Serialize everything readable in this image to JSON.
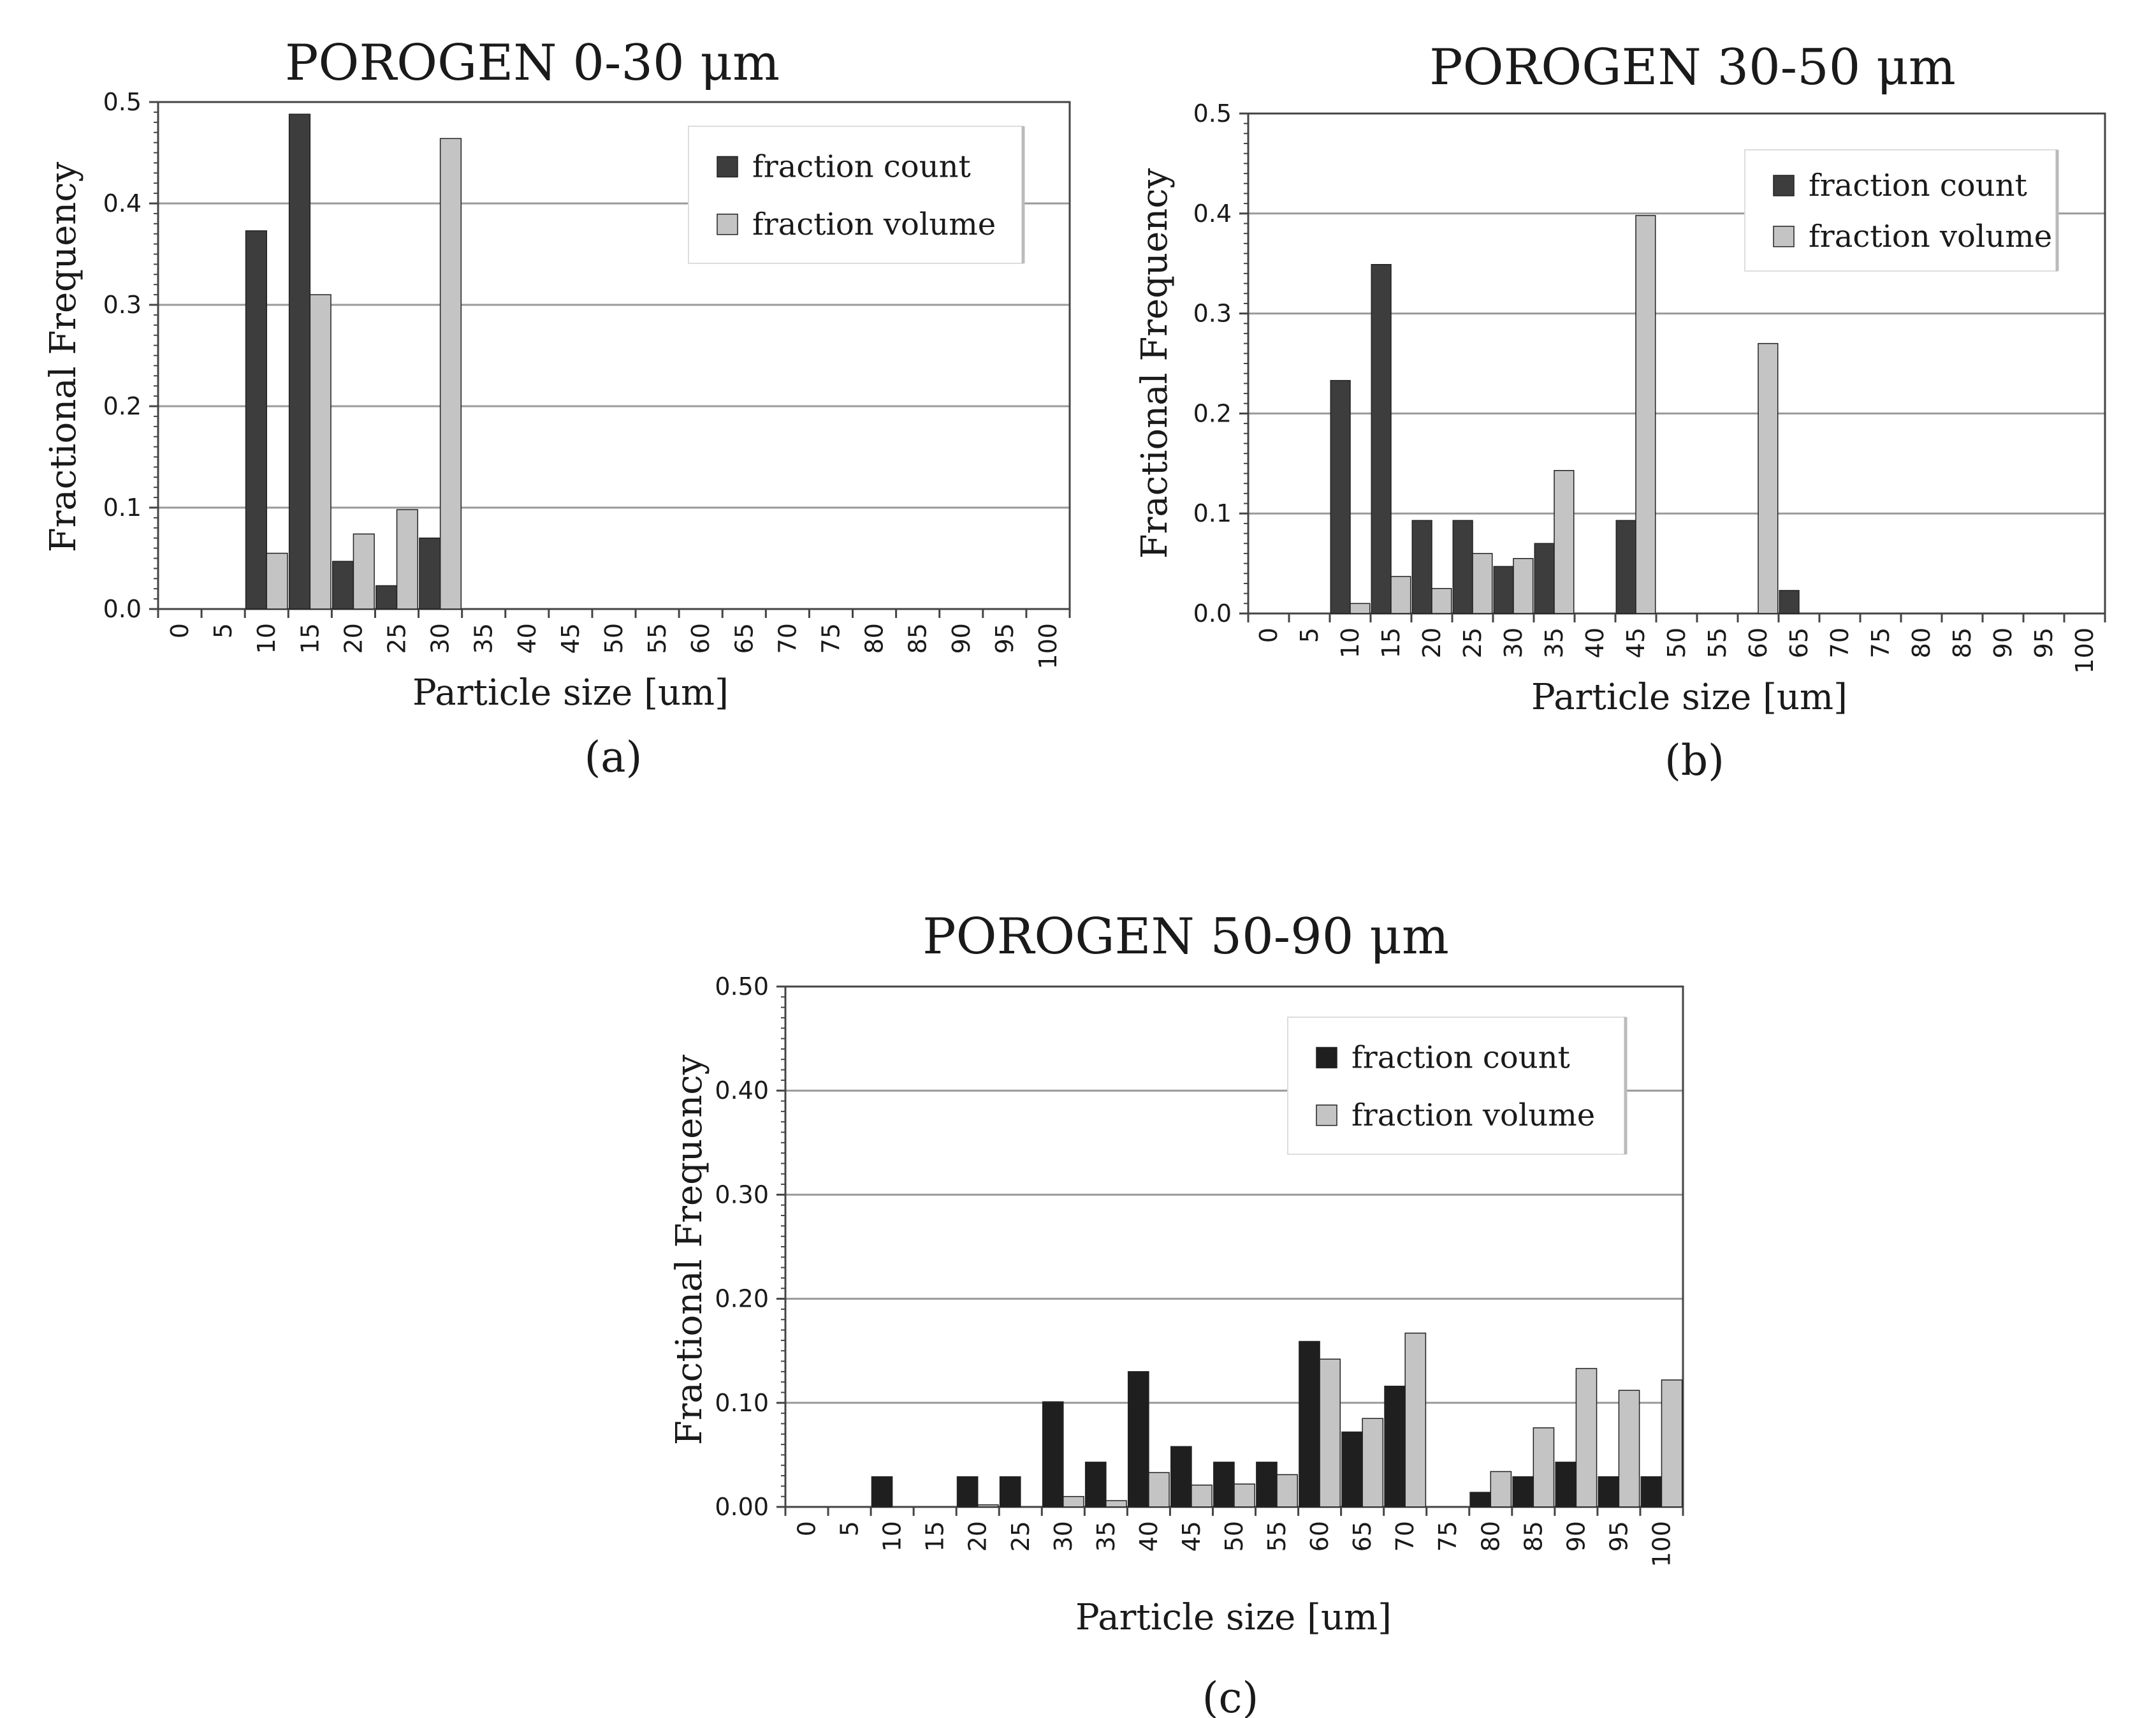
{
  "colors": {
    "count": "#3d3d3d",
    "volume": "#c4c4c4",
    "grid": "#9a9a9a",
    "axis": "#444444"
  },
  "chart_data": [
    {
      "type": "bar",
      "panel": "a",
      "title": "POROGEN 0-30 μm",
      "caption": "(a)",
      "xlabel": "Particle size [um]",
      "ylabel": "Fractional Frequency",
      "ylim": [
        0,
        0.5
      ],
      "yticks": [
        "0.0",
        "0.1",
        "0.2",
        "0.3",
        "0.4",
        "0.5"
      ],
      "categories": [
        "0",
        "5",
        "10",
        "15",
        "20",
        "25",
        "30",
        "35",
        "40",
        "45",
        "50",
        "55",
        "60",
        "65",
        "70",
        "75",
        "80",
        "85",
        "90",
        "95",
        "100"
      ],
      "legend_position": "top-right",
      "series": [
        {
          "name": "fraction count",
          "color": "#3d3d3d",
          "values": [
            0,
            0,
            0.373,
            0.488,
            0.047,
            0.023,
            0.07,
            0,
            0,
            0,
            0,
            0,
            0,
            0,
            0,
            0,
            0,
            0,
            0,
            0,
            0
          ]
        },
        {
          "name": "fraction volume",
          "color": "#c4c4c4",
          "values": [
            0,
            0,
            0.055,
            0.31,
            0.074,
            0.098,
            0.464,
            0,
            0,
            0,
            0,
            0,
            0,
            0,
            0,
            0,
            0,
            0,
            0,
            0,
            0
          ]
        }
      ]
    },
    {
      "type": "bar",
      "panel": "b",
      "title": "POROGEN 30-50 μm",
      "caption": "(b)",
      "xlabel": "Particle size [um]",
      "ylabel": "Fractional Frequency",
      "ylim": [
        0,
        0.5
      ],
      "yticks": [
        "0.0",
        "0.1",
        "0.2",
        "0.3",
        "0.4",
        "0.5"
      ],
      "categories": [
        "0",
        "5",
        "10",
        "15",
        "20",
        "25",
        "30",
        "35",
        "40",
        "45",
        "50",
        "55",
        "60",
        "65",
        "70",
        "75",
        "80",
        "85",
        "90",
        "95",
        "100"
      ],
      "legend_position": "top-right",
      "series": [
        {
          "name": "fraction count",
          "color": "#3d3d3d",
          "values": [
            0,
            0,
            0.233,
            0.349,
            0.093,
            0.093,
            0.047,
            0.07,
            0,
            0.093,
            0,
            0,
            0,
            0.023,
            0,
            0,
            0,
            0,
            0,
            0,
            0
          ]
        },
        {
          "name": "fraction volume",
          "color": "#c4c4c4",
          "values": [
            0,
            0,
            0.01,
            0.037,
            0.025,
            0.06,
            0.055,
            0.143,
            0,
            0.398,
            0,
            0,
            0.27,
            0,
            0,
            0,
            0,
            0,
            0,
            0,
            0
          ]
        }
      ]
    },
    {
      "type": "bar",
      "panel": "c",
      "title": "POROGEN 50-90 μm",
      "caption": "(c)",
      "xlabel": "Particle size [um]",
      "ylabel": "Fractional Frequency",
      "ylim": [
        0,
        0.5
      ],
      "yticks": [
        "0.00",
        "0.10",
        "0.20",
        "0.30",
        "0.40",
        "0.50"
      ],
      "categories": [
        "0",
        "5",
        "10",
        "15",
        "20",
        "25",
        "30",
        "35",
        "40",
        "45",
        "50",
        "55",
        "60",
        "65",
        "70",
        "75",
        "80",
        "85",
        "90",
        "95",
        "100"
      ],
      "legend_position": "top-right",
      "series": [
        {
          "name": "fraction count",
          "color": "#1f1f1f",
          "values": [
            0,
            0,
            0.029,
            0,
            0.029,
            0.029,
            0.101,
            0.043,
            0.13,
            0.058,
            0.043,
            0.043,
            0.159,
            0.072,
            0.116,
            0,
            0.014,
            0.029,
            0.043,
            0.029,
            0.029
          ]
        },
        {
          "name": "fraction volume",
          "color": "#c4c4c4",
          "values": [
            0,
            0,
            0,
            0,
            0.002,
            0,
            0.01,
            0.006,
            0.033,
            0.021,
            0.022,
            0.031,
            0.142,
            0.085,
            0.167,
            0,
            0.034,
            0.076,
            0.133,
            0.112,
            0.122
          ]
        }
      ]
    }
  ]
}
